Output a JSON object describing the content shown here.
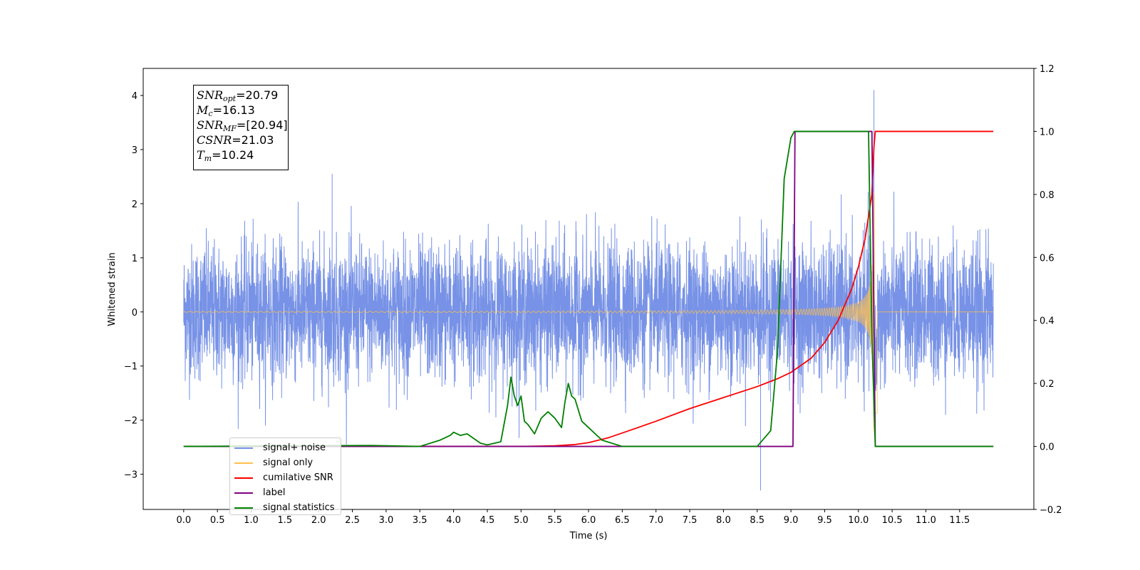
{
  "chart_data": {
    "type": "line",
    "xlabel": "Time (s)",
    "ylabel": "Whitened strain",
    "x_ticks": [
      "0.0",
      "0.5",
      "1.0",
      "1.5",
      "2.0",
      "2.5",
      "3.0",
      "3.5",
      "4.0",
      "4.5",
      "5.0",
      "5.5",
      "6.0",
      "6.5",
      "7.0",
      "7.5",
      "8.0",
      "8.5",
      "9.0",
      "9.5",
      "10.0",
      "10.5",
      "11.0",
      "11.5"
    ],
    "y_ticks_left": [
      "4",
      "3",
      "2",
      "1",
      "0",
      "−1",
      "−2",
      "−3"
    ],
    "y_ticks_right": [
      "1.2",
      "1.0",
      "0.8",
      "0.6",
      "0.4",
      "0.2",
      "0.0",
      "−0.2"
    ],
    "xlim": [
      -0.6,
      12.6
    ],
    "ylim_left": [
      -3.65,
      4.5
    ],
    "ylim_right": [
      -0.2,
      1.2
    ],
    "annotation": {
      "snr_opt": "=20.79",
      "mc": "=16.13",
      "snr_mf": "=[20.94]",
      "csnr": "=21.03",
      "tm": "=10.24"
    },
    "legend": {
      "placement": "lower-left",
      "entries": [
        {
          "label": "signal+ noise",
          "color": "#7792e6"
        },
        {
          "label": "signal only",
          "color": "#ffc04d"
        },
        {
          "label": "cumilative SNR",
          "color": "#ff0000"
        },
        {
          "label": "label",
          "color": "#800080"
        },
        {
          "label": "signal statistics",
          "color": "#008000"
        }
      ]
    },
    "series": [
      {
        "name": "signal+ noise",
        "axis": "left",
        "type": "noise",
        "x_range": [
          0.0,
          12.0
        ],
        "envelope_typical": 1.2,
        "envelope_peak": 2.6,
        "notable_spikes": [
          [
            8.55,
            -3.3
          ],
          [
            10.23,
            4.1
          ],
          [
            2.2,
            2.55
          ]
        ]
      },
      {
        "name": "signal only",
        "axis": "left",
        "type": "chirp",
        "x_range": [
          0.0,
          12.0
        ],
        "merger_time": 10.24,
        "amplitude_at_merger": 2.3
      },
      {
        "name": "cumilative SNR",
        "axis": "right",
        "x": [
          0.0,
          5.0,
          5.5,
          5.8,
          6.0,
          6.3,
          6.6,
          7.0,
          7.5,
          8.0,
          8.5,
          8.8,
          9.0,
          9.3,
          9.5,
          9.7,
          9.9,
          10.0,
          10.1,
          10.15,
          10.2,
          10.23,
          10.25,
          12.0
        ],
        "y": [
          0.0,
          0.0,
          0.002,
          0.006,
          0.012,
          0.028,
          0.05,
          0.08,
          0.12,
          0.155,
          0.19,
          0.215,
          0.235,
          0.28,
          0.33,
          0.4,
          0.5,
          0.57,
          0.66,
          0.73,
          0.8,
          0.95,
          1.0,
          1.0
        ]
      },
      {
        "name": "label",
        "axis": "right",
        "x": [
          0.0,
          9.03,
          9.06,
          10.2,
          10.25,
          12.0
        ],
        "y": [
          0.0,
          0.0,
          1.0,
          1.0,
          0.0,
          0.0
        ]
      },
      {
        "name": "signal statistics",
        "axis": "right",
        "x": [
          0.0,
          2.8,
          3.5,
          3.8,
          3.95,
          4.0,
          4.1,
          4.2,
          4.3,
          4.4,
          4.5,
          4.7,
          4.8,
          4.85,
          4.9,
          4.95,
          5.0,
          5.05,
          5.1,
          5.2,
          5.3,
          5.4,
          5.5,
          5.6,
          5.65,
          5.7,
          5.75,
          5.8,
          5.9,
          6.0,
          6.2,
          6.5,
          7.0,
          8.5,
          8.7,
          8.8,
          8.9,
          9.0,
          9.05,
          9.1,
          9.2,
          10.15,
          10.2,
          10.25,
          12.0
        ],
        "y": [
          0.0,
          0.003,
          0.0,
          0.02,
          0.035,
          0.045,
          0.035,
          0.04,
          0.025,
          0.01,
          0.005,
          0.015,
          0.13,
          0.22,
          0.16,
          0.13,
          0.16,
          0.08,
          0.07,
          0.04,
          0.09,
          0.11,
          0.09,
          0.06,
          0.14,
          0.2,
          0.16,
          0.15,
          0.08,
          0.06,
          0.02,
          0.0,
          0.0,
          0.0,
          0.05,
          0.3,
          0.85,
          0.98,
          1.0,
          1.0,
          1.0,
          1.0,
          0.35,
          0.0,
          0.0
        ]
      }
    ]
  }
}
